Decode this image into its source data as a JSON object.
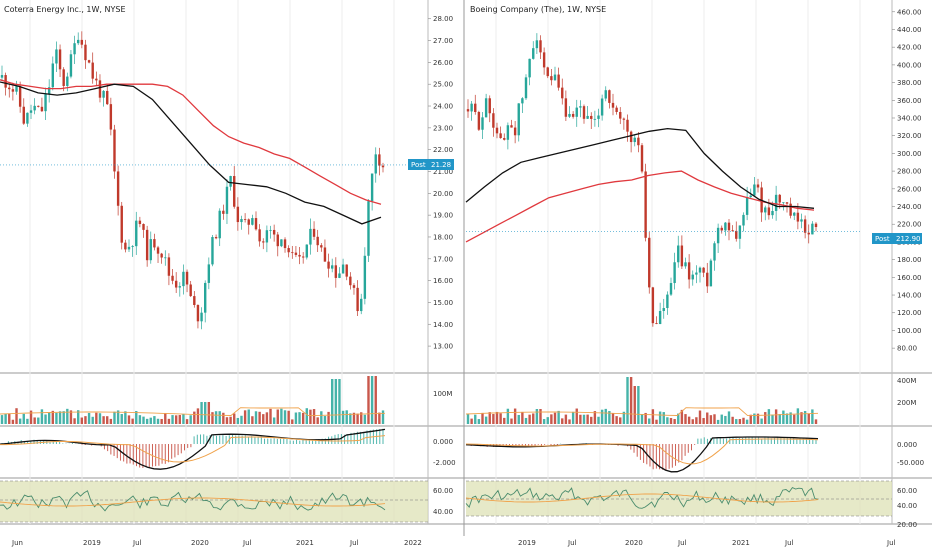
{
  "colors": {
    "up": "#26a69a",
    "down": "#c0392b",
    "ma_red": "#e0393e",
    "ma_black": "#111111",
    "orange": "#f0a24a",
    "rsi_line": "#4a8c6d",
    "rsi_band": "#dcdfb0",
    "badge": "#2196c8",
    "grid": "#eeeeee",
    "axis": "#555555"
  },
  "x_axis": {
    "labels": [
      "Jun",
      "2019",
      "Jul",
      "2020",
      "Jul",
      "2021",
      "Jul",
      "2022",
      "2019",
      "Jul",
      "2020",
      "Jul",
      "2021",
      "Jul",
      "Jul"
    ]
  },
  "chart_data": [
    {
      "type": "line",
      "title": "Coterra Energy Inc., 1W, NYSE",
      "price_labels": [
        "28.00",
        "27.00",
        "26.00",
        "25.00",
        "24.00",
        "23.00",
        "22.00",
        "21.00",
        "20.00",
        "19.00",
        "18.00",
        "17.00",
        "16.00",
        "15.00",
        "14.00",
        "13.00"
      ],
      "ylim": [
        12.5,
        28.4
      ],
      "badge": {
        "label": "Post",
        "value": "21.28"
      },
      "series": [
        {
          "name": "",
          "kind": "close",
          "values": [
            25.3,
            25.0,
            24.5,
            23.2,
            24.0,
            23.6,
            24.6,
            26.5,
            25.0,
            26.0,
            27.4,
            26.4,
            25.3,
            24.6,
            23.7,
            20.0,
            17.3,
            17.8,
            18.8,
            17.3,
            17.8,
            17.3,
            16.2,
            15.9,
            16.2,
            14.8,
            14.3,
            16.8,
            18.2,
            19.3,
            20.6,
            18.8,
            18.4,
            19.2,
            17.6,
            18.3,
            17.9,
            18.0,
            17.0,
            16.7,
            17.6,
            18.4,
            17.2,
            16.9,
            16.3,
            16.9,
            15.5,
            14.6,
            19.2,
            22.0,
            21.3
          ]
        },
        {
          "name": "",
          "kind": "ma_red",
          "values": [
            25.2,
            25.0,
            24.9,
            24.8,
            24.8,
            24.9,
            24.9,
            25.0,
            25.0,
            25.0,
            25.0,
            24.9,
            24.5,
            23.8,
            23.1,
            22.6,
            22.3,
            22.1,
            21.8,
            21.6,
            21.2,
            20.8,
            20.4,
            20.0,
            19.7,
            19.5
          ]
        },
        {
          "name": "",
          "kind": "ma_black",
          "values": [
            25.1,
            24.9,
            24.6,
            24.5,
            24.6,
            24.8,
            25.0,
            24.9,
            24.3,
            23.3,
            22.3,
            21.3,
            20.5,
            20.4,
            20.3,
            20.0,
            19.6,
            19.4,
            19.0,
            18.6,
            18.9
          ]
        }
      ]
    },
    {
      "type": "line",
      "title": "Boeing Company (The), 1W, NYSE",
      "price_labels": [
        "460.00",
        "440.00",
        "420.00",
        "400.00",
        "380.00",
        "360.00",
        "340.00",
        "320.00",
        "300.00",
        "280.00",
        "260.00",
        "240.00",
        "220.00",
        "200.00",
        "180.00",
        "160.00",
        "140.00",
        "120.00",
        "100.00",
        "80.00"
      ],
      "ylim": [
        70,
        462
      ],
      "badge": {
        "label": "Post",
        "value": "212.90"
      },
      "series": [
        {
          "name": "",
          "kind": "close",
          "values": [
            350,
            345,
            335,
            355,
            345,
            325,
            305,
            340,
            325,
            355,
            380,
            420,
            440,
            390,
            375,
            380,
            360,
            340,
            330,
            355,
            345,
            330,
            330,
            365,
            375,
            345,
            335,
            330,
            315,
            315,
            285,
            160,
            100,
            120,
            125,
            150,
            190,
            175,
            165,
            160,
            170,
            150,
            185,
            215,
            225,
            220,
            205,
            225,
            240,
            265,
            255,
            235,
            235,
            250,
            245,
            235,
            225,
            220,
            215,
            218,
            212
          ]
        },
        {
          "name": "",
          "kind": "ma_red",
          "values": [
            200,
            210,
            220,
            230,
            240,
            250,
            255,
            260,
            265,
            268,
            270,
            275,
            278,
            280,
            270,
            262,
            255,
            250,
            245,
            242,
            238,
            236
          ]
        },
        {
          "name": "",
          "kind": "ma_black",
          "values": [
            245,
            262,
            278,
            290,
            295,
            300,
            305,
            310,
            315,
            320,
            325,
            328,
            326,
            300,
            280,
            262,
            248,
            240,
            240,
            238
          ]
        }
      ]
    }
  ],
  "volume": {
    "left_labels": [
      "100M"
    ],
    "right_labels": [
      "400M",
      "200M"
    ]
  },
  "macd": {
    "left_labels": [
      "0.000",
      "-2.000"
    ],
    "right_labels": [
      "0.000",
      "-50.000"
    ]
  },
  "rsi": {
    "left_labels": [
      "60.00",
      "40.00"
    ],
    "right_labels": [
      "60.00",
      "40.00",
      "20.00"
    ]
  }
}
